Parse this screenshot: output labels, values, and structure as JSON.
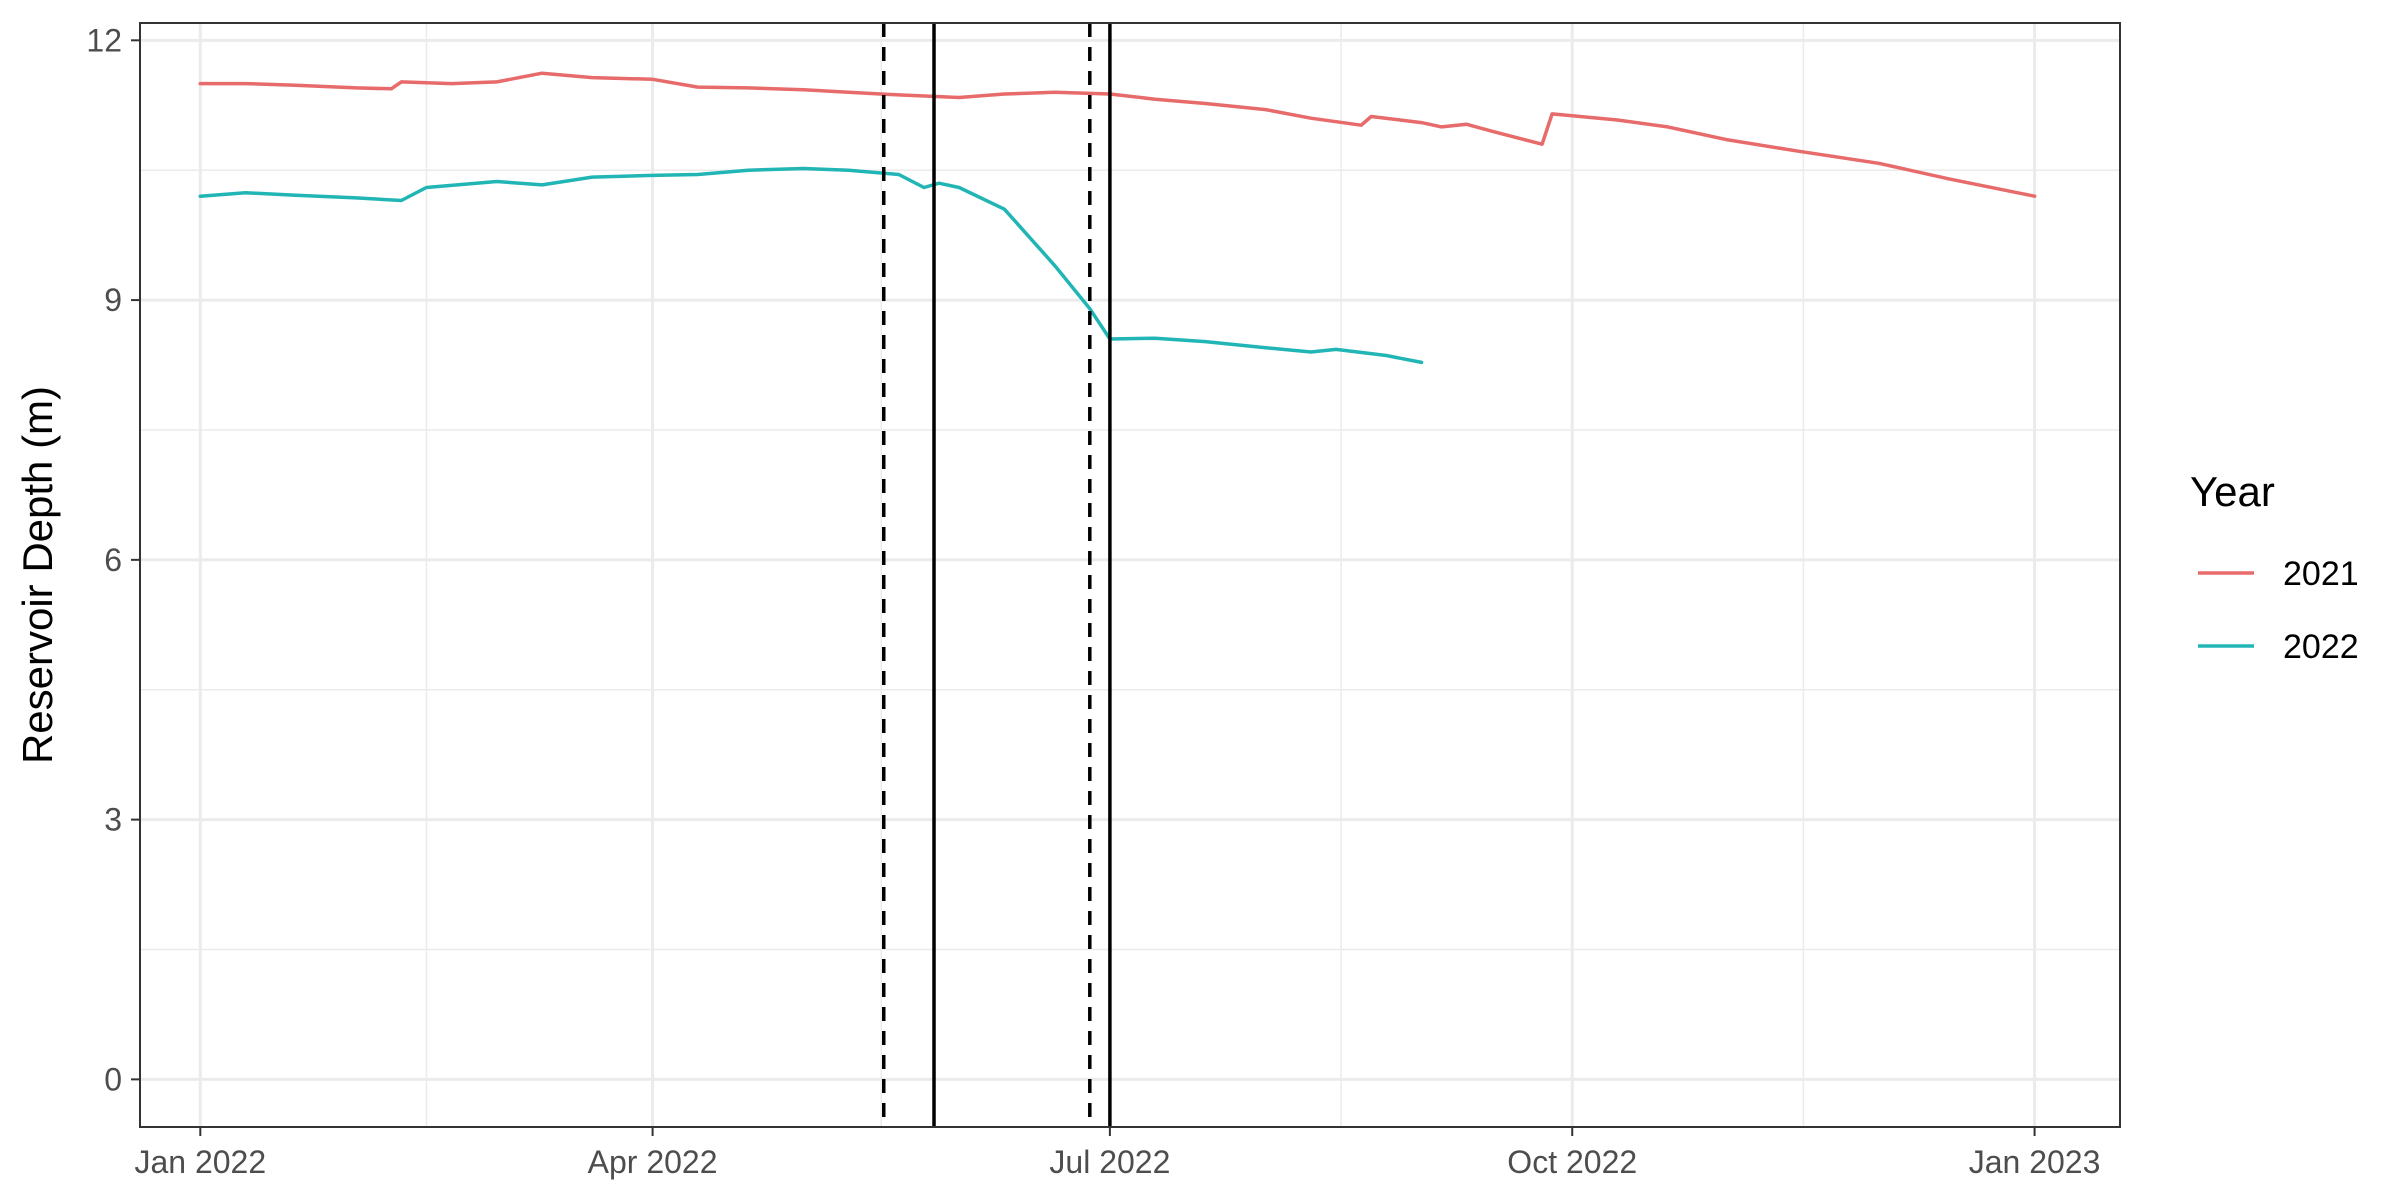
{
  "chart_data": {
    "type": "line",
    "xlabel": "",
    "ylabel": "Reservoir Depth (m)",
    "x_axis": {
      "scale": "date",
      "ticks": [
        "2022-01-01",
        "2022-04-01",
        "2022-07-01",
        "2022-10-01",
        "2023-01-01"
      ],
      "tick_labels": [
        "Jan 2022",
        "Apr 2022",
        "Jul 2022",
        "Oct 2022",
        "Jan 2023"
      ],
      "range": [
        "2021-12-20",
        "2023-01-18"
      ]
    },
    "y_axis": {
      "ticks": [
        0,
        3,
        6,
        9,
        12
      ],
      "tick_labels": [
        "0",
        "3",
        "6",
        "9",
        "12"
      ],
      "range": [
        -0.55,
        12.2
      ]
    },
    "grid": true,
    "legend": {
      "title": "Year",
      "position": "right"
    },
    "series": [
      {
        "name": "2021",
        "color": "#e76b6a",
        "points": [
          [
            "2022-01-01",
            11.5
          ],
          [
            "2022-01-10",
            11.5
          ],
          [
            "2022-01-20",
            11.48
          ],
          [
            "2022-02-01",
            11.45
          ],
          [
            "2022-02-08",
            11.44
          ],
          [
            "2022-02-10",
            11.52
          ],
          [
            "2022-02-20",
            11.5
          ],
          [
            "2022-03-01",
            11.52
          ],
          [
            "2022-03-10",
            11.62
          ],
          [
            "2022-03-20",
            11.57
          ],
          [
            "2022-04-01",
            11.55
          ],
          [
            "2022-04-10",
            11.46
          ],
          [
            "2022-04-20",
            11.45
          ],
          [
            "2022-05-01",
            11.43
          ],
          [
            "2022-05-10",
            11.4
          ],
          [
            "2022-05-20",
            11.37
          ],
          [
            "2022-06-01",
            11.34
          ],
          [
            "2022-06-10",
            11.38
          ],
          [
            "2022-06-20",
            11.4
          ],
          [
            "2022-07-01",
            11.38
          ],
          [
            "2022-07-10",
            11.32
          ],
          [
            "2022-07-20",
            11.27
          ],
          [
            "2022-08-01",
            11.2
          ],
          [
            "2022-08-10",
            11.1
          ],
          [
            "2022-08-20",
            11.02
          ],
          [
            "2022-08-22",
            11.12
          ],
          [
            "2022-09-01",
            11.05
          ],
          [
            "2022-09-05",
            11.0
          ],
          [
            "2022-09-10",
            11.03
          ],
          [
            "2022-09-15",
            10.95
          ],
          [
            "2022-09-25",
            10.8
          ],
          [
            "2022-09-27",
            11.15
          ],
          [
            "2022-10-10",
            11.08
          ],
          [
            "2022-10-20",
            11.0
          ],
          [
            "2022-11-01",
            10.85
          ],
          [
            "2022-11-15",
            10.72
          ],
          [
            "2022-12-01",
            10.58
          ],
          [
            "2022-12-15",
            10.4
          ],
          [
            "2023-01-01",
            10.2
          ]
        ]
      },
      {
        "name": "2022",
        "color": "#21b5b5",
        "points": [
          [
            "2022-01-01",
            10.2
          ],
          [
            "2022-01-10",
            10.24
          ],
          [
            "2022-01-20",
            10.21
          ],
          [
            "2022-02-01",
            10.18
          ],
          [
            "2022-02-10",
            10.15
          ],
          [
            "2022-02-15",
            10.3
          ],
          [
            "2022-03-01",
            10.37
          ],
          [
            "2022-03-10",
            10.33
          ],
          [
            "2022-03-20",
            10.42
          ],
          [
            "2022-04-01",
            10.44
          ],
          [
            "2022-04-10",
            10.45
          ],
          [
            "2022-04-20",
            10.5
          ],
          [
            "2022-05-01",
            10.52
          ],
          [
            "2022-05-10",
            10.5
          ],
          [
            "2022-05-20",
            10.45
          ],
          [
            "2022-05-25",
            10.3
          ],
          [
            "2022-05-28",
            10.35
          ],
          [
            "2022-06-01",
            10.3
          ],
          [
            "2022-06-10",
            10.05
          ],
          [
            "2022-06-20",
            9.4
          ],
          [
            "2022-06-27",
            8.9
          ],
          [
            "2022-07-01",
            8.55
          ],
          [
            "2022-07-10",
            8.56
          ],
          [
            "2022-07-20",
            8.52
          ],
          [
            "2022-08-01",
            8.45
          ],
          [
            "2022-08-10",
            8.4
          ],
          [
            "2022-08-15",
            8.43
          ],
          [
            "2022-08-25",
            8.36
          ],
          [
            "2022-09-01",
            8.28
          ]
        ]
      }
    ],
    "vertical_lines": [
      {
        "x": "2022-05-17",
        "style": "dashed"
      },
      {
        "x": "2022-05-27",
        "style": "solid"
      },
      {
        "x": "2022-06-27",
        "style": "dashed"
      },
      {
        "x": "2022-07-01",
        "style": "solid"
      }
    ]
  }
}
